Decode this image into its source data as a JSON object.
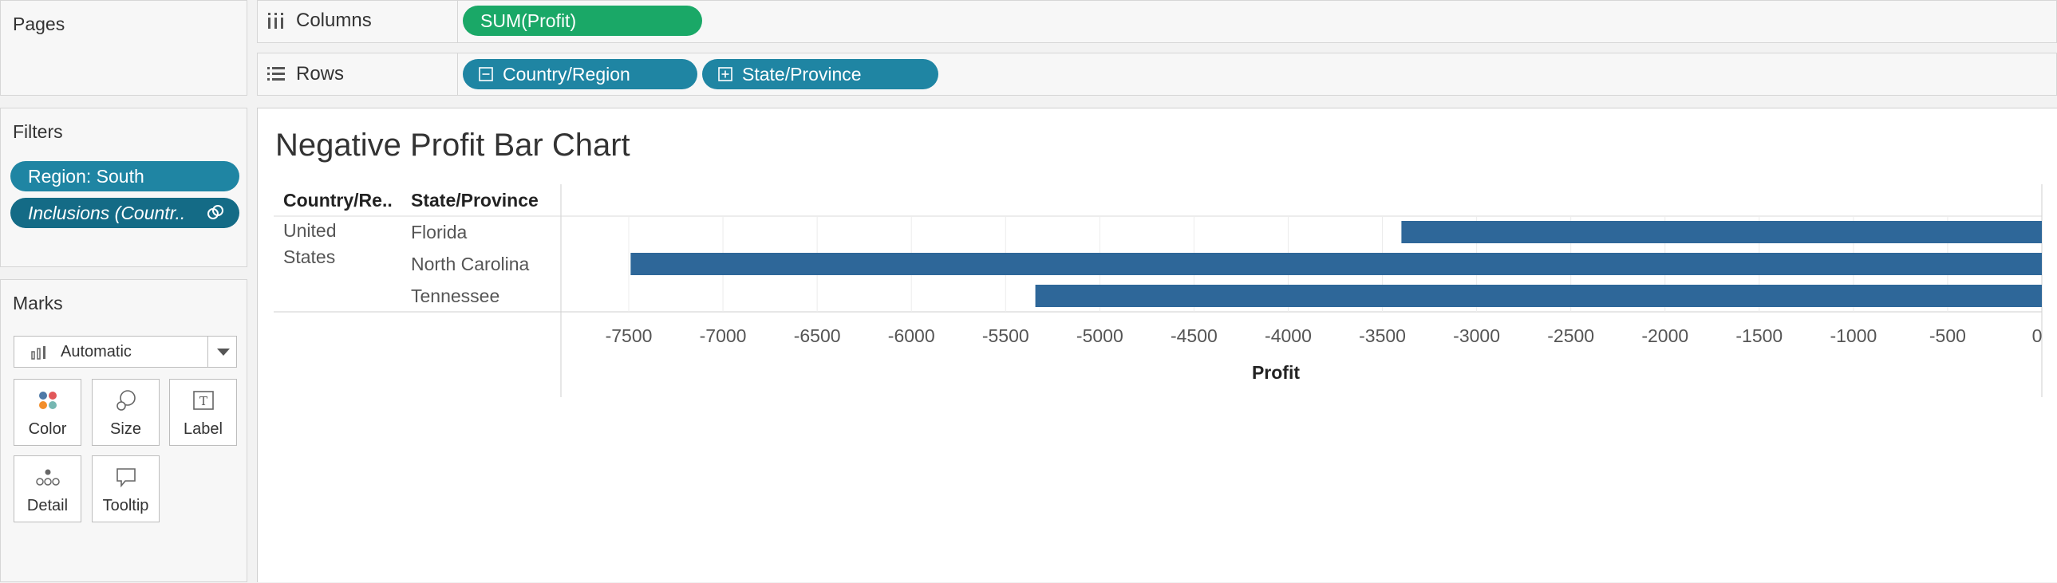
{
  "pages": {
    "title": "Pages"
  },
  "filters": {
    "title": "Filters",
    "items": [
      {
        "label": "Region: South"
      },
      {
        "label": "Inclusions (Countr.."
      }
    ]
  },
  "marks": {
    "title": "Marks",
    "type": "Automatic",
    "buttons": [
      {
        "label": "Color"
      },
      {
        "label": "Size"
      },
      {
        "label": "Label"
      },
      {
        "label": "Detail"
      },
      {
        "label": "Tooltip"
      }
    ]
  },
  "shelves": {
    "columns": {
      "label": "Columns",
      "pills": [
        "SUM(Profit)"
      ]
    },
    "rows": {
      "label": "Rows",
      "pills": [
        "Country/Region",
        "State/Province"
      ]
    }
  },
  "view": {
    "title": "Negative Profit Bar Chart",
    "headers": [
      "Country/Re..",
      "State/Province"
    ],
    "country": "United States",
    "country_lines": [
      "United",
      "States"
    ]
  },
  "chart_data": {
    "type": "bar",
    "orientation": "horizontal",
    "categories": [
      "Florida",
      "North Carolina",
      "Tennessee"
    ],
    "values": [
      -3399,
      -7490,
      -5342
    ],
    "xlabel": "Profit",
    "xlim": [
      -7860,
      0
    ],
    "ticks": [
      -7500,
      -7000,
      -6500,
      -6000,
      -5500,
      -5000,
      -4500,
      -4000,
      -3500,
      -3000,
      -2500,
      -2000,
      -1500,
      -1000,
      -500,
      0
    ],
    "bar_color": "#2e6799",
    "grid": true
  }
}
